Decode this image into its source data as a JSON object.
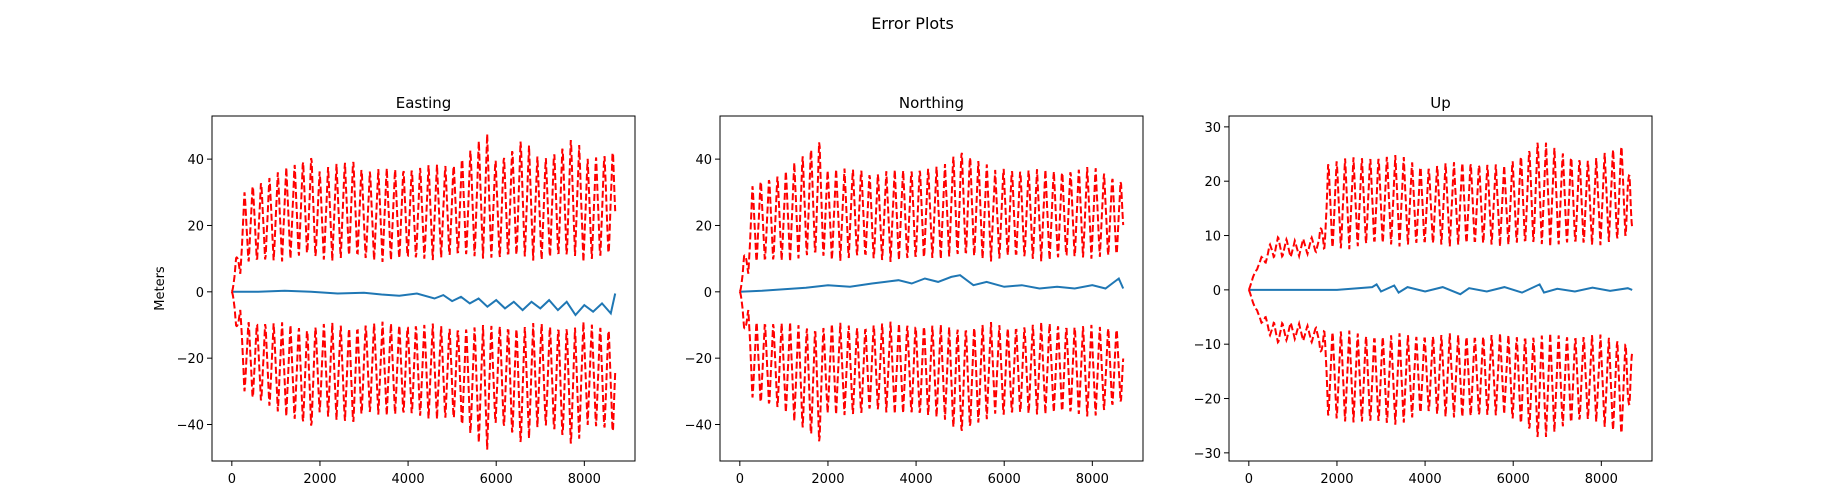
{
  "figure": {
    "title": "Error Plots"
  },
  "chart_data": [
    {
      "type": "line",
      "title": "Easting",
      "ylabel": "Meters",
      "xlabel": "",
      "xlim": [
        -450,
        9150
      ],
      "ylim": [
        -51,
        53
      ],
      "xticks": [
        0,
        2000,
        4000,
        6000,
        8000
      ],
      "xtick_labels": [
        "0",
        "2000",
        "4000",
        "6000",
        "8000"
      ],
      "yticks": [
        -40,
        -20,
        0,
        20,
        40
      ],
      "ytick_labels": [
        "−40",
        "−20",
        "0",
        "20",
        "40"
      ],
      "grid": false,
      "series": [
        {
          "style": "solid",
          "color": "#1f77b4",
          "x": [
            0,
            600,
            1200,
            1800,
            2400,
            3000,
            3400,
            3800,
            4200,
            4600,
            4800,
            5000,
            5200,
            5400,
            5600,
            5800,
            6000,
            6200,
            6400,
            6600,
            6800,
            7000,
            7200,
            7400,
            7600,
            7800,
            8000,
            8200,
            8400,
            8600,
            8700
          ],
          "y": [
            0,
            0,
            0.3,
            0,
            -0.5,
            -0.3,
            -0.8,
            -1.2,
            -0.5,
            -2,
            -1,
            -2.8,
            -1.5,
            -3.5,
            -2,
            -4.5,
            -2.5,
            -5,
            -3,
            -5.5,
            -3,
            -5,
            -2.5,
            -5.5,
            -3,
            -7,
            -4,
            -6,
            -3.5,
            -6.5,
            -0.5
          ]
        },
        {
          "style": "dashed",
          "color": "#ff0000",
          "period": 190,
          "x": [
            0,
            300,
            1000,
            1800,
            2000,
            2800,
            3000,
            4000,
            5000,
            5800,
            6000,
            6600,
            7000,
            7800,
            8000,
            8700
          ],
          "hi": [
            0,
            32,
            36,
            42,
            37,
            41,
            37,
            38,
            39,
            48,
            40,
            47,
            40,
            48,
            40,
            44
          ],
          "lo": [
            0,
            8,
            9,
            10,
            9,
            10,
            9,
            9,
            10,
            10,
            9,
            10,
            9,
            10,
            9,
            10
          ]
        }
      ]
    },
    {
      "type": "line",
      "title": "Northing",
      "ylabel": "",
      "xlabel": "",
      "xlim": [
        -450,
        9150
      ],
      "ylim": [
        -51,
        53
      ],
      "xticks": [
        0,
        2000,
        4000,
        6000,
        8000
      ],
      "xtick_labels": [
        "0",
        "2000",
        "4000",
        "6000",
        "8000"
      ],
      "yticks": [
        -40,
        -20,
        0,
        20,
        40
      ],
      "ytick_labels": [
        "−40",
        "−20",
        "0",
        "20",
        "40"
      ],
      "grid": false,
      "series": [
        {
          "style": "solid",
          "color": "#1f77b4",
          "x": [
            0,
            500,
            1000,
            1500,
            2000,
            2500,
            3000,
            3300,
            3600,
            3900,
            4200,
            4500,
            4800,
            5000,
            5300,
            5600,
            6000,
            6400,
            6800,
            7200,
            7600,
            8000,
            8300,
            8600,
            8700
          ],
          "y": [
            0,
            0.3,
            0.8,
            1.2,
            2,
            1.5,
            2.5,
            3,
            3.5,
            2.5,
            4,
            3,
            4.5,
            5,
            2,
            3,
            1.5,
            2,
            1,
            1.5,
            1,
            2,
            1,
            4,
            1
          ]
        },
        {
          "style": "dashed",
          "color": "#ff0000",
          "period": 190,
          "x": [
            0,
            300,
            1000,
            1800,
            2000,
            2800,
            3000,
            4000,
            4600,
            5000,
            5800,
            6000,
            7000,
            8000,
            8700
          ],
          "hi": [
            0,
            34,
            36,
            47,
            37,
            38,
            36,
            38,
            38,
            44,
            37,
            38,
            37,
            38,
            34
          ],
          "lo": [
            0,
            8,
            9,
            10,
            9,
            10,
            9,
            9,
            10,
            10,
            9,
            10,
            9,
            10,
            10
          ]
        }
      ]
    },
    {
      "type": "line",
      "title": "Up",
      "ylabel": "",
      "xlabel": "",
      "xlim": [
        -450,
        9150
      ],
      "ylim": [
        -31.5,
        32
      ],
      "xticks": [
        0,
        2000,
        4000,
        6000,
        8000
      ],
      "xtick_labels": [
        "0",
        "2000",
        "4000",
        "6000",
        "8000"
      ],
      "yticks": [
        -30,
        -20,
        -10,
        0,
        10,
        20,
        30
      ],
      "ytick_labels": [
        "−30",
        "−20",
        "−10",
        "0",
        "10",
        "20",
        "30"
      ],
      "grid": false,
      "series": [
        {
          "style": "solid",
          "color": "#1f77b4",
          "x": [
            0,
            1000,
            2000,
            2800,
            2900,
            3000,
            3300,
            3400,
            3600,
            4000,
            4400,
            4800,
            5000,
            5400,
            5800,
            6200,
            6600,
            6700,
            7000,
            7400,
            7800,
            8200,
            8600,
            8700
          ],
          "y": [
            0,
            0,
            0,
            0.5,
            1,
            -0.3,
            0.8,
            -0.5,
            0.5,
            -0.3,
            0.5,
            -0.8,
            0.3,
            -0.3,
            0.5,
            -0.5,
            1,
            -0.5,
            0.2,
            -0.3,
            0.4,
            -0.2,
            0.3,
            0
          ]
        },
        {
          "style": "dashed",
          "color": "#ff0000",
          "period": 190,
          "x": [
            0,
            200,
            600,
            1000,
            1600,
            1800,
            2800,
            3400,
            4000,
            5000,
            5800,
            6600,
            7000,
            7800,
            8600,
            8700
          ],
          "hi": [
            0,
            5,
            10,
            9,
            10,
            24,
            25,
            25,
            23,
            24,
            23,
            28,
            26,
            24,
            28,
            12
          ],
          "lo": [
            0,
            4,
            6,
            6,
            7,
            7,
            8,
            8,
            8,
            8,
            8,
            8,
            8,
            8,
            9,
            11
          ]
        }
      ]
    }
  ]
}
